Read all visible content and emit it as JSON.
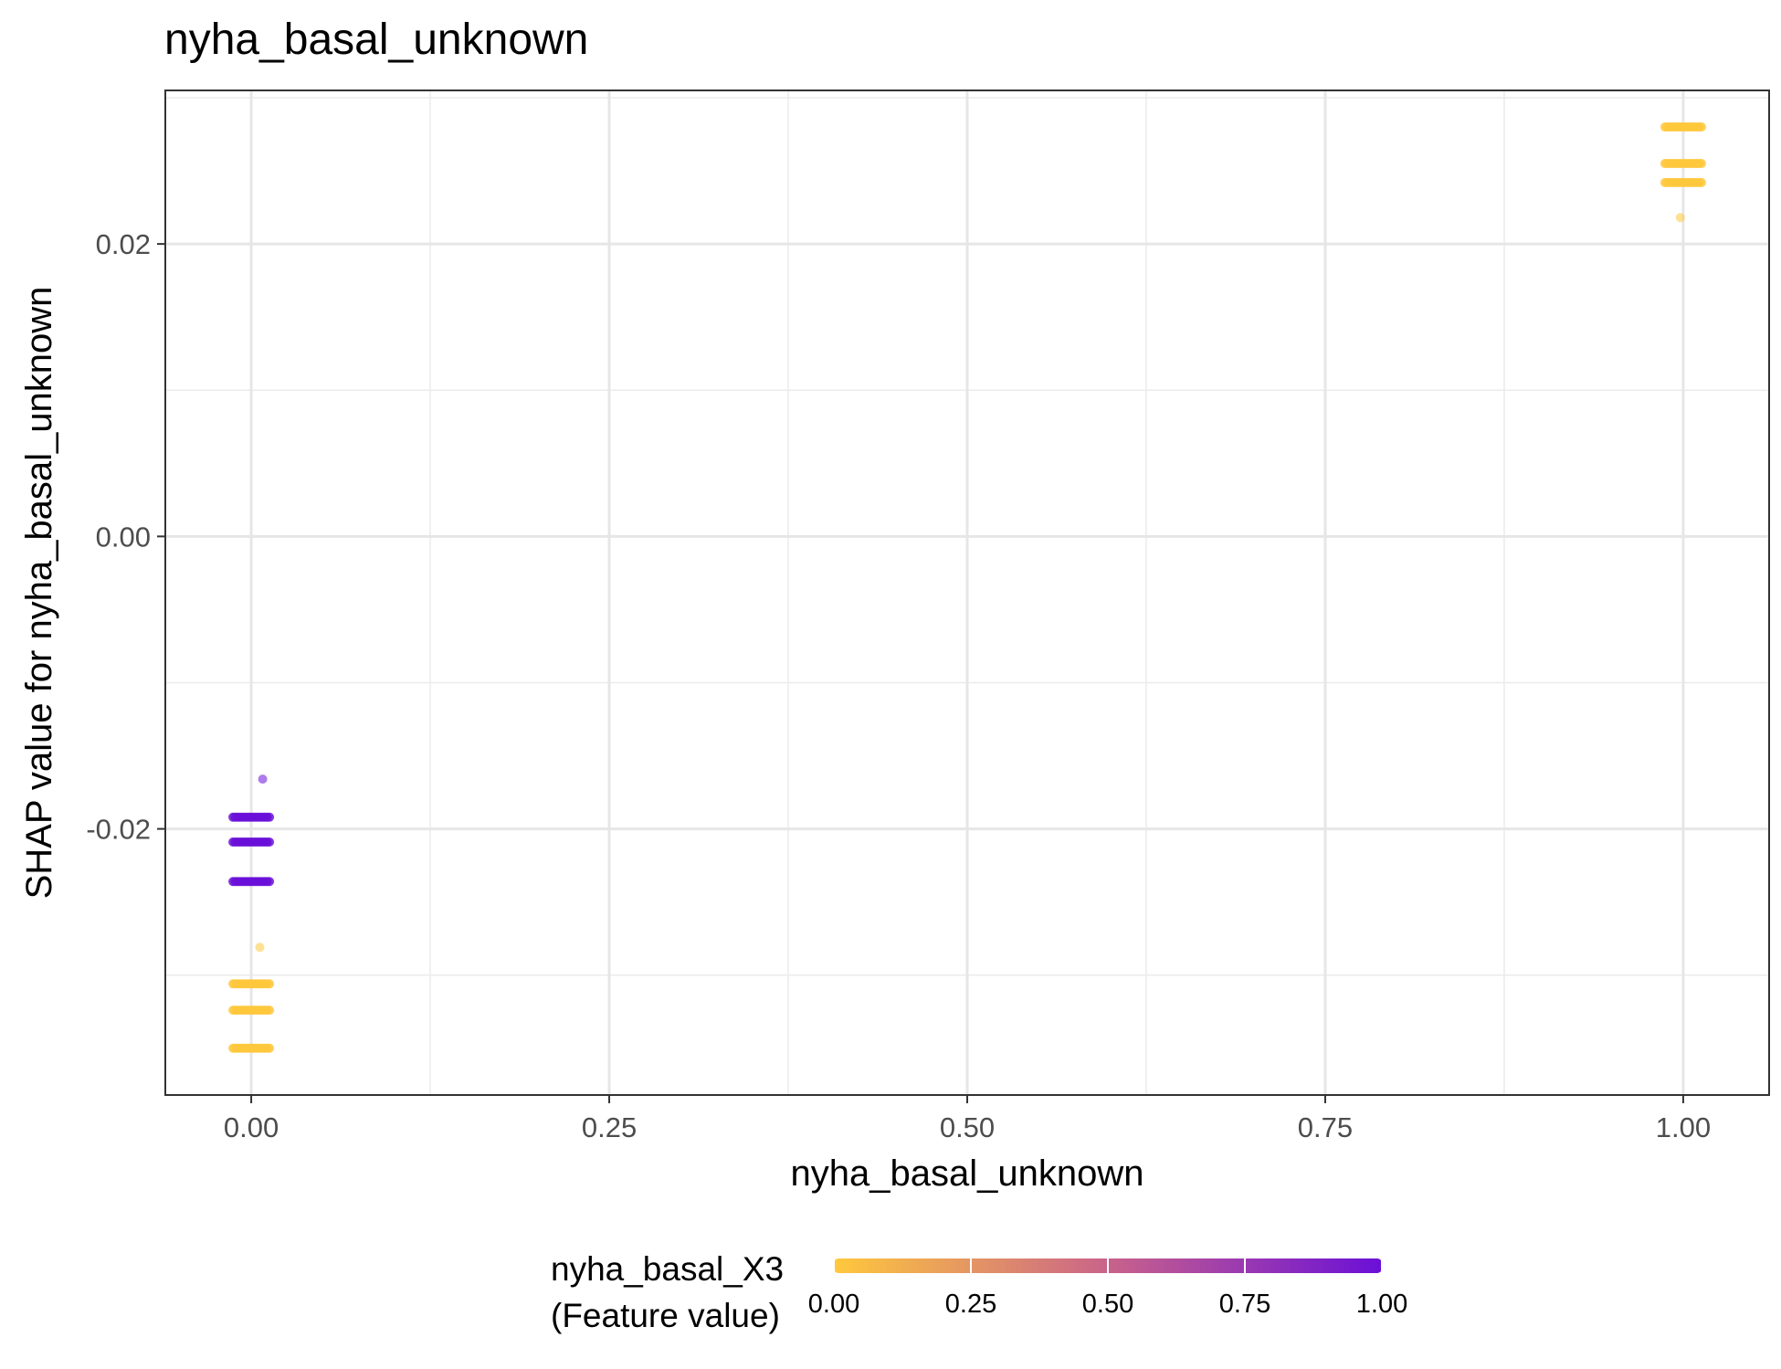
{
  "chart_data": {
    "type": "scatter",
    "title": "nyha_basal_unknown",
    "xlabel": "nyha_basal_unknown",
    "ylabel": "SHAP value for nyha_basal_unknown",
    "xlim": [
      -0.06,
      1.06
    ],
    "ylim": [
      -0.0382,
      0.0305
    ],
    "x_ticks": [
      0.0,
      0.25,
      0.5,
      0.75,
      1.0
    ],
    "x_tick_labels": [
      "0.00",
      "0.25",
      "0.50",
      "0.75",
      "1.00"
    ],
    "y_ticks": [
      -0.02,
      0.0,
      0.02
    ],
    "y_tick_labels": [
      "-0.02",
      "0.00",
      "0.02"
    ],
    "y_minor_ticks": [
      -0.03,
      -0.01,
      0.01,
      0.03
    ],
    "grid": true,
    "legend": {
      "title_line1": "nyha_basal_X3",
      "title_line2": "(Feature value)",
      "placement": "bottom",
      "color_low": "#ffc83c",
      "color_high": "#6a0fd8",
      "ticks": [
        0.0,
        0.25,
        0.5,
        0.75,
        1.0
      ],
      "tick_labels": [
        "0.00",
        "0.25",
        "0.50",
        "0.75",
        "1.00"
      ]
    },
    "clusters": [
      {
        "x": 0.0,
        "y": -0.0192,
        "color_value": 1.0
      },
      {
        "x": 0.0,
        "y": -0.0209,
        "color_value": 1.0
      },
      {
        "x": 0.0,
        "y": -0.0236,
        "color_value": 1.0
      },
      {
        "x": 0.0,
        "y": -0.0306,
        "color_value": 0.0
      },
      {
        "x": 0.0,
        "y": -0.0324,
        "color_value": 0.0
      },
      {
        "x": 0.0,
        "y": -0.035,
        "color_value": 0.0
      },
      {
        "x": 1.0,
        "y": 0.028,
        "color_value": 0.0
      },
      {
        "x": 1.0,
        "y": 0.0255,
        "color_value": 0.0
      },
      {
        "x": 1.0,
        "y": 0.0242,
        "color_value": 0.0
      }
    ],
    "outliers": [
      {
        "x": 0.008,
        "y": -0.0166,
        "color_value": 1.0
      },
      {
        "x": 0.006,
        "y": -0.0281,
        "color_value": 0.0
      },
      {
        "x": 0.998,
        "y": 0.0218,
        "color_value": 0.0
      }
    ]
  }
}
